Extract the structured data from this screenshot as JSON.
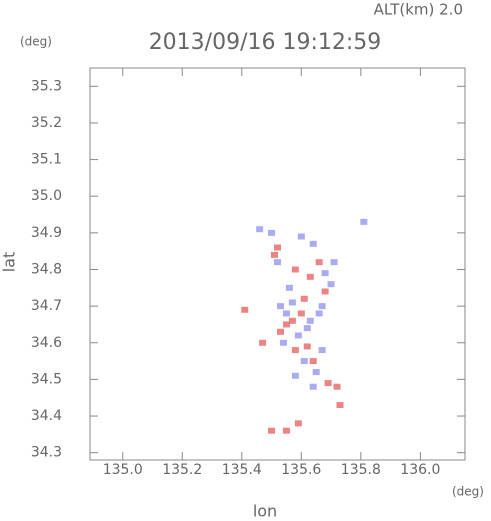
{
  "chart_data": {
    "type": "scatter",
    "title": "2013/09/16 19:12:59",
    "subtitle": "ALT(km)  2.0",
    "y_unit": "(deg)",
    "x_unit": "(deg)",
    "x_label": "lon",
    "y_label": "lat",
    "xlim": [
      134.89,
      136.15
    ],
    "ylim": [
      34.28,
      35.35
    ],
    "xticks": [
      {
        "value": 135,
        "label": "135.0"
      },
      135.2,
      135.4,
      135.6,
      135.8,
      {
        "value": 136,
        "label": "136.0"
      }
    ],
    "yticks": [
      34.3,
      34.4,
      34.5,
      34.6,
      34.7,
      34.8,
      34.9,
      {
        "value": 35,
        "label": "35.0"
      },
      35.1,
      35.2,
      35.3
    ],
    "series": [
      {
        "color": "#e86f6f",
        "x": [
          135.41,
          135.47,
          135.59,
          135.72,
          135.73,
          135.62,
          135.57,
          135.63,
          135.58,
          135.52,
          135.55,
          135.6,
          135.53,
          135.66,
          135.68,
          135.5,
          135.55,
          135.69,
          135.51,
          135.64,
          135.61,
          135.58
        ],
        "values": [
          34.69,
          34.6,
          34.38,
          34.48,
          34.43,
          34.59,
          34.66,
          34.78,
          34.8,
          34.86,
          34.65,
          34.68,
          34.63,
          34.82,
          34.74,
          34.36,
          34.36,
          34.49,
          34.84,
          34.55,
          34.72,
          34.58
        ]
      },
      {
        "color": "#9c9cf0",
        "x": [
          135.81,
          135.46,
          135.5,
          135.6,
          135.64,
          135.68,
          135.71,
          135.53,
          135.57,
          135.63,
          135.66,
          135.59,
          135.54,
          135.61,
          135.65,
          135.64,
          135.67,
          135.56,
          135.67,
          135.7,
          135.55,
          135.62,
          135.58,
          135.52
        ],
        "values": [
          34.93,
          34.91,
          34.9,
          34.89,
          34.87,
          34.79,
          34.82,
          34.7,
          34.71,
          34.66,
          34.68,
          34.62,
          34.6,
          34.55,
          34.52,
          34.48,
          34.58,
          34.75,
          34.7,
          34.76,
          34.68,
          34.64,
          34.51,
          34.82
        ]
      }
    ]
  }
}
